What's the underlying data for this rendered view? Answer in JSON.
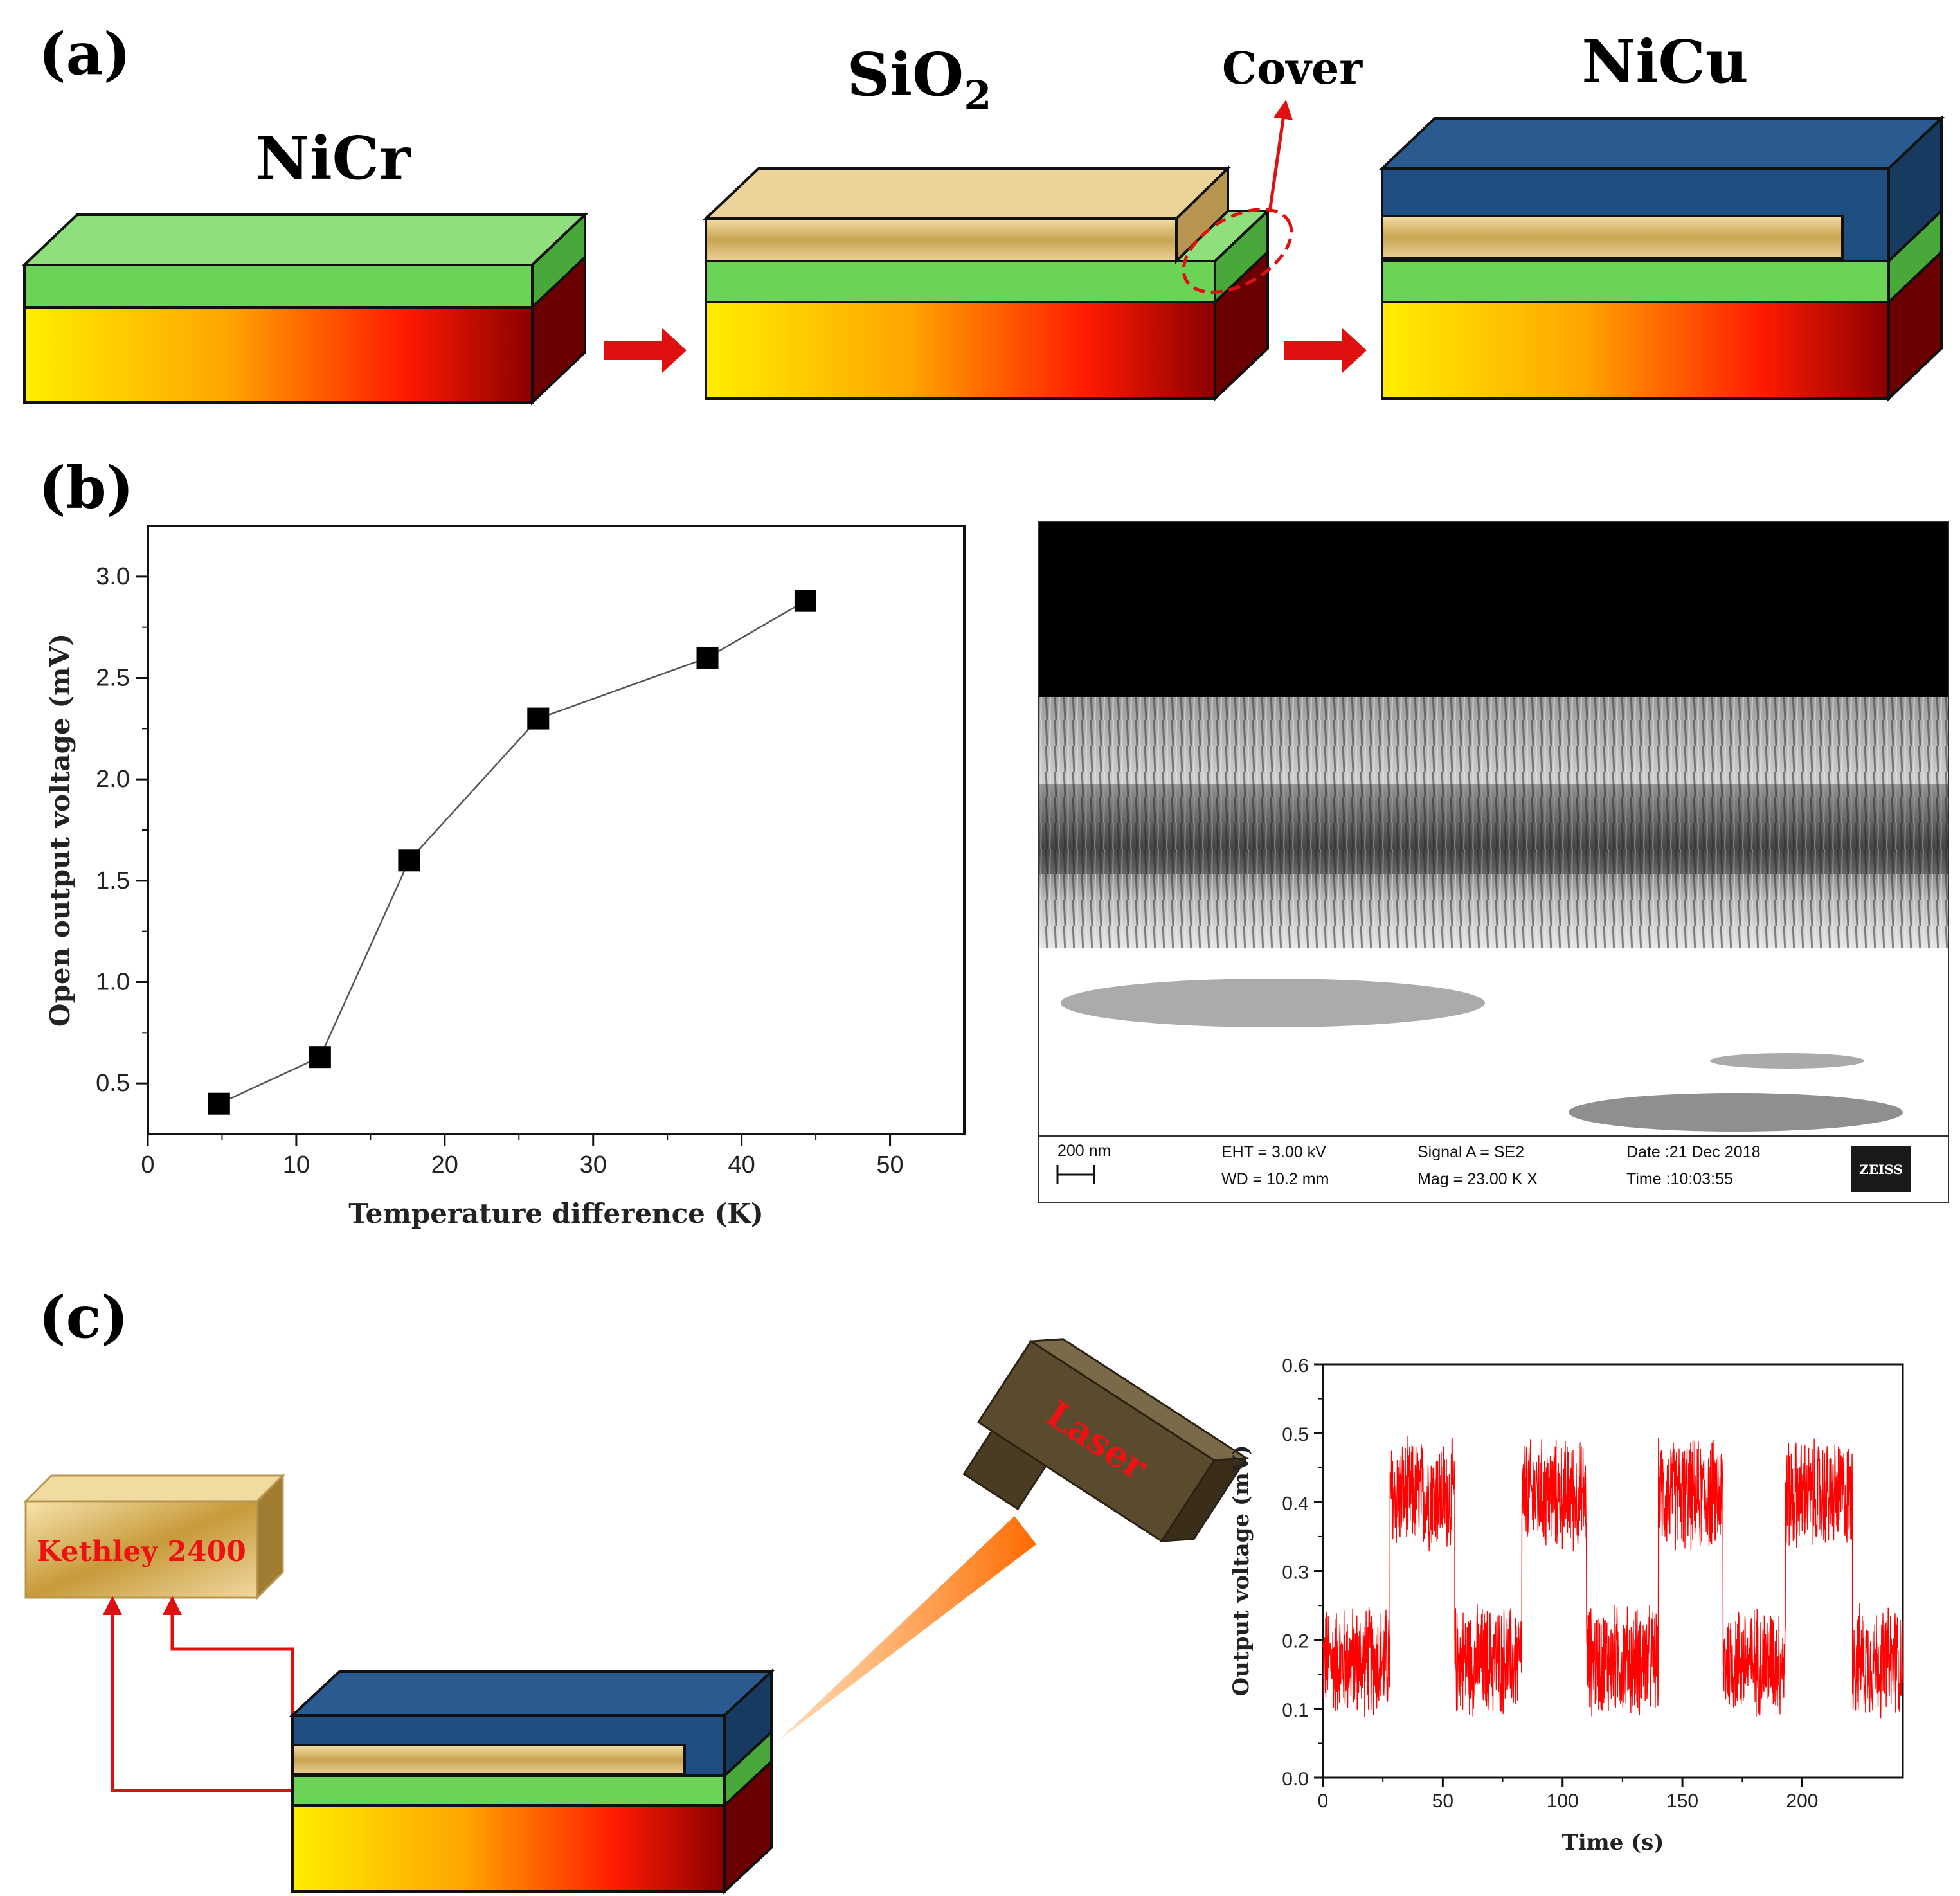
{
  "panels": {
    "a": {
      "label": "(a)",
      "step1_title": "NiCr",
      "step2_title_main": "SiO",
      "step2_title_sub": "2",
      "step2_callout": "Cover",
      "step3_title": "NiCu"
    },
    "b": {
      "label": "(b)",
      "sem": {
        "scale_text": "200 nm",
        "eht": "EHT =  3.00 kV",
        "wd": "WD = 10.2 mm",
        "signal": "Signal A = SE2",
        "mag": "Mag =    23.00 K X",
        "date": "Date :21 Dec 2018",
        "time": "Time :10:03:55",
        "logo": "ZEISS"
      }
    },
    "c": {
      "label": "(c)",
      "meter_label": "Kethley 2400",
      "laser_label": "Laser"
    }
  },
  "colors": {
    "arrow": "#e01010",
    "nicr_green": "#7fd86a",
    "sio2_gold": "#d8b86a",
    "nicu_blue": "#1f4e80",
    "trace_red": "#ff0000"
  },
  "chart_data": [
    {
      "type": "line",
      "title": "",
      "xlabel": "Temperature difference (K)",
      "ylabel": "Open output voltage (mV)",
      "xlim": [
        0,
        55
      ],
      "ylim": [
        0.25,
        3.25
      ],
      "xticks": [
        0,
        10,
        20,
        30,
        40,
        50
      ],
      "yticks": [
        0.5,
        1.0,
        1.5,
        2.0,
        2.5,
        3.0
      ],
      "xtick_labels": [
        "0",
        "10",
        "20",
        "30",
        "40",
        "50"
      ],
      "ytick_labels": [
        "0.5",
        "1.0",
        "1.5",
        "2.0",
        "2.5",
        "3.0"
      ],
      "marker": "square",
      "series": [
        {
          "name": "Open output voltage",
          "x": [
            4.8,
            11.6,
            17.6,
            26.3,
            37.7,
            44.3
          ],
          "y": [
            0.4,
            0.63,
            1.6,
            2.3,
            2.6,
            2.88
          ]
        }
      ]
    },
    {
      "type": "line",
      "title": "",
      "xlabel": "Time (s)",
      "ylabel": "Output voltage (mV)",
      "xlim": [
        0,
        242
      ],
      "ylim": [
        0.0,
        0.6
      ],
      "xticks": [
        0,
        50,
        100,
        150,
        200
      ],
      "yticks": [
        0.0,
        0.1,
        0.2,
        0.3,
        0.4,
        0.5,
        0.6
      ],
      "xtick_labels": [
        "0",
        "50",
        "100",
        "150",
        "200"
      ],
      "ytick_labels": [
        "0.0",
        "0.1",
        "0.2",
        "0.3",
        "0.4",
        "0.5",
        "0.6"
      ],
      "series": [
        {
          "name": "Output voltage (laser on/off cycles)",
          "segments": [
            {
              "t_start": 0,
              "t_end": 28,
              "level": 0.17
            },
            {
              "t_start": 28,
              "t_end": 55,
              "level": 0.41
            },
            {
              "t_start": 55,
              "t_end": 83,
              "level": 0.17
            },
            {
              "t_start": 83,
              "t_end": 110,
              "level": 0.41
            },
            {
              "t_start": 110,
              "t_end": 140,
              "level": 0.17
            },
            {
              "t_start": 140,
              "t_end": 167,
              "level": 0.41
            },
            {
              "t_start": 167,
              "t_end": 193,
              "level": 0.17
            },
            {
              "t_start": 193,
              "t_end": 221,
              "level": 0.41
            },
            {
              "t_start": 221,
              "t_end": 242,
              "level": 0.17
            }
          ],
          "noise_amplitude": 0.09
        }
      ]
    }
  ]
}
